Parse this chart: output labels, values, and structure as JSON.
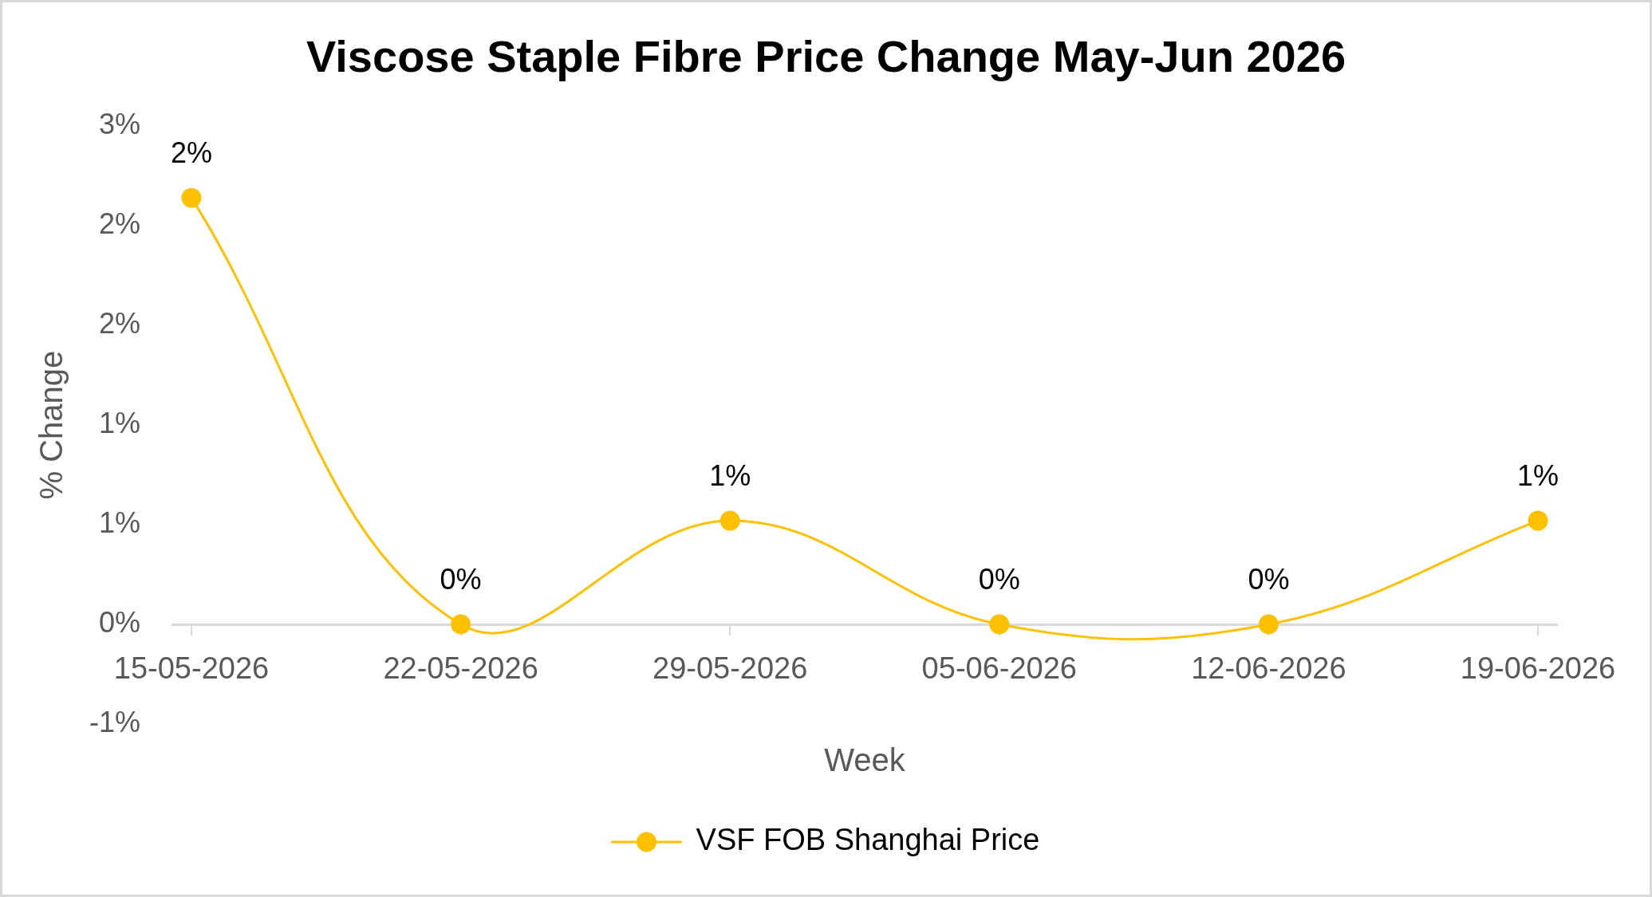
{
  "chart_data": {
    "type": "line",
    "title": "Viscose Staple Fibre Price Change May-Jun 2026",
    "xlabel": "Week",
    "ylabel": "% Change",
    "categories": [
      "15-05-2026",
      "22-05-2026",
      "29-05-2026",
      "05-06-2026",
      "12-06-2026",
      "19-06-2026"
    ],
    "series": [
      {
        "name": "VSF FOB Shanghai Price",
        "color": "#ffc000",
        "values": [
          2.14,
          0,
          0.52,
          0,
          0,
          0.52
        ],
        "value_labels": [
          "2%",
          "0%",
          "1%",
          "0%",
          "0%",
          "1%"
        ]
      }
    ],
    "ylim": [
      -0.5,
      2.5
    ],
    "yticks": [
      {
        "value": -0.5,
        "label": "-1%"
      },
      {
        "value": 0,
        "label": "0%"
      },
      {
        "value": 0.5,
        "label": "1%"
      },
      {
        "value": 1,
        "label": "1%"
      },
      {
        "value": 1.5,
        "label": "2%"
      },
      {
        "value": 2,
        "label": "2%"
      },
      {
        "value": 2.5,
        "label": "3%"
      }
    ],
    "legend": "bottom",
    "marker": "circle",
    "line_style": "solid"
  }
}
